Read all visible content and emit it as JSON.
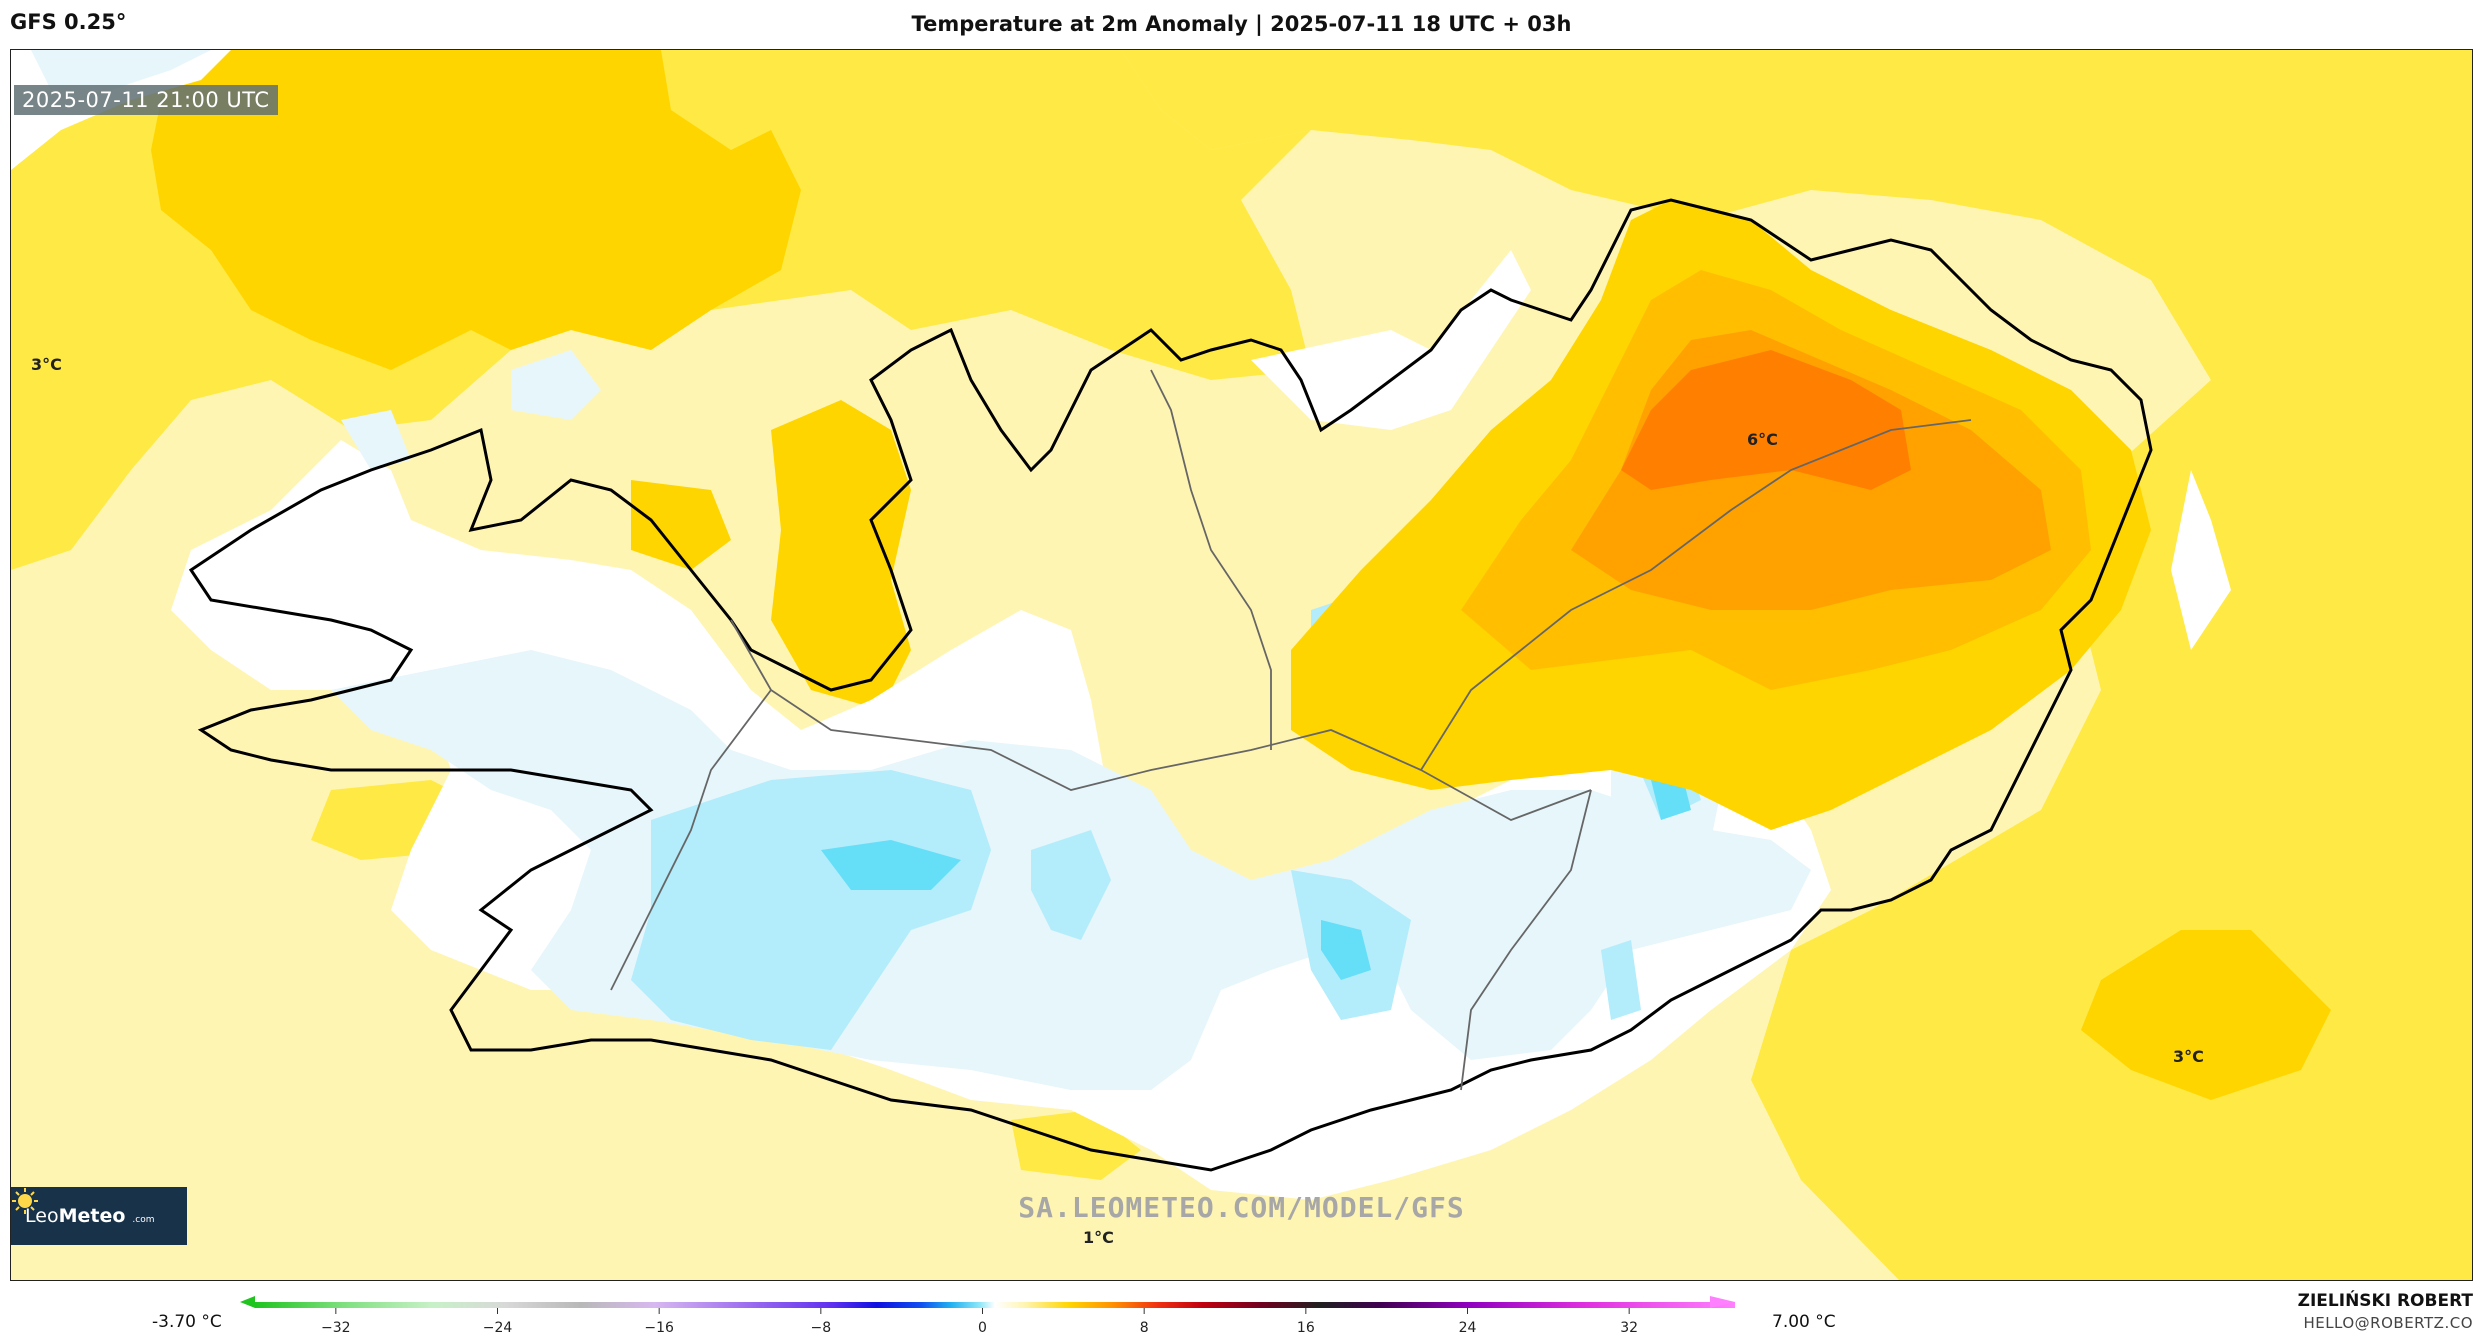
{
  "header": {
    "model": "GFS 0.25°",
    "title": "Temperature at 2m Anomaly | 2025-07-11 18 UTC + 03h"
  },
  "map": {
    "valid_time": "2025-07-11 21:00 UTC",
    "region": "Iceland",
    "labels": [
      {
        "text": "3°C"
      },
      {
        "text": "6°C"
      },
      {
        "text": "3°C"
      },
      {
        "text": "1°C"
      }
    ],
    "palette": {
      "cold_light": "#e6f6fb",
      "cold_mid": "#b3ecfb",
      "cold_strong": "#65def7",
      "neutral": "#ffffff",
      "warm_1": "#fff5b3",
      "warm_2": "#ffe944",
      "warm_3": "#ffd500",
      "warm_4": "#ffbf00",
      "warm_5": "#ffa200",
      "warm_6": "#ff8000"
    }
  },
  "logo": {
    "brand_light": "Leo",
    "brand_bold": "Meteo",
    "suffix": ".com"
  },
  "watermark": "SA.LEOMETEO.COM/MODEL/GFS",
  "colorbar": {
    "min_label": "-3.70 °C",
    "max_label": "7.00 °C",
    "ticks": [
      -32,
      -24,
      -16,
      -8,
      0,
      8,
      16,
      24,
      32
    ],
    "range": [
      -36,
      36
    ]
  },
  "author": {
    "name": "ZIELIŃSKI ROBERT",
    "email": "HELLO@ROBERTZ.CO"
  }
}
